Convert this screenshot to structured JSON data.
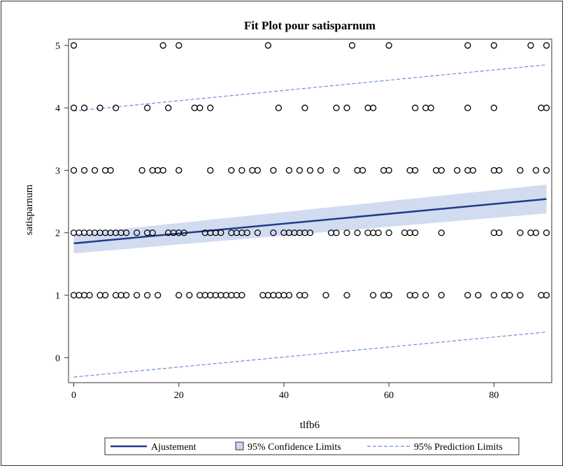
{
  "chart_data": {
    "type": "scatter",
    "title": "Fit Plot pour satisparnum",
    "xlabel": "tlfb6",
    "ylabel": "satisparnum",
    "xlim": [
      -1,
      91
    ],
    "ylim": [
      -0.4,
      5.1
    ],
    "x_ticks": [
      0,
      20,
      40,
      60,
      80
    ],
    "y_ticks": [
      0,
      1,
      2,
      3,
      4,
      5
    ],
    "grid": false,
    "legend_position": "bottom",
    "colors": {
      "fit": "#1f3c88",
      "band": "#c9d6ee",
      "prediction": "#6b8fd0",
      "marker": "#000000"
    },
    "series": [
      {
        "name": "satisparnum",
        "kind": "points",
        "points": [
          [
            0,
            5
          ],
          [
            17,
            5
          ],
          [
            20,
            5
          ],
          [
            37,
            5
          ],
          [
            53,
            5
          ],
          [
            60,
            5
          ],
          [
            75,
            5
          ],
          [
            80,
            5
          ],
          [
            87,
            5
          ],
          [
            90,
            5
          ],
          [
            0,
            4
          ],
          [
            2,
            4
          ],
          [
            5,
            4
          ],
          [
            8,
            4
          ],
          [
            14,
            4
          ],
          [
            18,
            4
          ],
          [
            23,
            4
          ],
          [
            24,
            4
          ],
          [
            26,
            4
          ],
          [
            39,
            4
          ],
          [
            44,
            4
          ],
          [
            50,
            4
          ],
          [
            52,
            4
          ],
          [
            56,
            4
          ],
          [
            57,
            4
          ],
          [
            65,
            4
          ],
          [
            67,
            4
          ],
          [
            68,
            4
          ],
          [
            75,
            4
          ],
          [
            80,
            4
          ],
          [
            89,
            4
          ],
          [
            90,
            4
          ],
          [
            0,
            3
          ],
          [
            2,
            3
          ],
          [
            4,
            3
          ],
          [
            6,
            3
          ],
          [
            7,
            3
          ],
          [
            13,
            3
          ],
          [
            15,
            3
          ],
          [
            16,
            3
          ],
          [
            17,
            3
          ],
          [
            20,
            3
          ],
          [
            26,
            3
          ],
          [
            30,
            3
          ],
          [
            32,
            3
          ],
          [
            34,
            3
          ],
          [
            35,
            3
          ],
          [
            38,
            3
          ],
          [
            41,
            3
          ],
          [
            43,
            3
          ],
          [
            45,
            3
          ],
          [
            47,
            3
          ],
          [
            50,
            3
          ],
          [
            54,
            3
          ],
          [
            55,
            3
          ],
          [
            59,
            3
          ],
          [
            60,
            3
          ],
          [
            64,
            3
          ],
          [
            65,
            3
          ],
          [
            69,
            3
          ],
          [
            70,
            3
          ],
          [
            73,
            3
          ],
          [
            75,
            3
          ],
          [
            76,
            3
          ],
          [
            80,
            3
          ],
          [
            81,
            3
          ],
          [
            85,
            3
          ],
          [
            88,
            3
          ],
          [
            90,
            3
          ],
          [
            0,
            2
          ],
          [
            1,
            2
          ],
          [
            2,
            2
          ],
          [
            3,
            2
          ],
          [
            4,
            2
          ],
          [
            5,
            2
          ],
          [
            6,
            2
          ],
          [
            7,
            2
          ],
          [
            8,
            2
          ],
          [
            9,
            2
          ],
          [
            10,
            2
          ],
          [
            12,
            2
          ],
          [
            14,
            2
          ],
          [
            15,
            2
          ],
          [
            18,
            2
          ],
          [
            19,
            2
          ],
          [
            20,
            2
          ],
          [
            21,
            2
          ],
          [
            25,
            2
          ],
          [
            26,
            2
          ],
          [
            27,
            2
          ],
          [
            28,
            2
          ],
          [
            30,
            2
          ],
          [
            31,
            2
          ],
          [
            32,
            2
          ],
          [
            33,
            2
          ],
          [
            35,
            2
          ],
          [
            38,
            2
          ],
          [
            40,
            2
          ],
          [
            41,
            2
          ],
          [
            42,
            2
          ],
          [
            43,
            2
          ],
          [
            44,
            2
          ],
          [
            45,
            2
          ],
          [
            49,
            2
          ],
          [
            50,
            2
          ],
          [
            52,
            2
          ],
          [
            54,
            2
          ],
          [
            56,
            2
          ],
          [
            57,
            2
          ],
          [
            58,
            2
          ],
          [
            60,
            2
          ],
          [
            63,
            2
          ],
          [
            64,
            2
          ],
          [
            65,
            2
          ],
          [
            70,
            2
          ],
          [
            80,
            2
          ],
          [
            81,
            2
          ],
          [
            85,
            2
          ],
          [
            87,
            2
          ],
          [
            88,
            2
          ],
          [
            90,
            2
          ],
          [
            0,
            1
          ],
          [
            1,
            1
          ],
          [
            2,
            1
          ],
          [
            3,
            1
          ],
          [
            5,
            1
          ],
          [
            6,
            1
          ],
          [
            8,
            1
          ],
          [
            9,
            1
          ],
          [
            10,
            1
          ],
          [
            12,
            1
          ],
          [
            14,
            1
          ],
          [
            16,
            1
          ],
          [
            20,
            1
          ],
          [
            22,
            1
          ],
          [
            24,
            1
          ],
          [
            25,
            1
          ],
          [
            26,
            1
          ],
          [
            27,
            1
          ],
          [
            28,
            1
          ],
          [
            29,
            1
          ],
          [
            30,
            1
          ],
          [
            31,
            1
          ],
          [
            32,
            1
          ],
          [
            36,
            1
          ],
          [
            37,
            1
          ],
          [
            38,
            1
          ],
          [
            39,
            1
          ],
          [
            40,
            1
          ],
          [
            41,
            1
          ],
          [
            43,
            1
          ],
          [
            44,
            1
          ],
          [
            48,
            1
          ],
          [
            52,
            1
          ],
          [
            57,
            1
          ],
          [
            59,
            1
          ],
          [
            60,
            1
          ],
          [
            64,
            1
          ],
          [
            65,
            1
          ],
          [
            67,
            1
          ],
          [
            70,
            1
          ],
          [
            75,
            1
          ],
          [
            77,
            1
          ],
          [
            80,
            1
          ],
          [
            82,
            1
          ],
          [
            83,
            1
          ],
          [
            85,
            1
          ],
          [
            89,
            1
          ],
          [
            90,
            1
          ]
        ]
      },
      {
        "name": "Ajustement",
        "kind": "fit-line",
        "x": [
          0,
          90
        ],
        "y": [
          1.83,
          2.54
        ]
      },
      {
        "name": "95% Confidence Limits",
        "kind": "band",
        "x": [
          0,
          90
        ],
        "lower": [
          1.67,
          2.31
        ],
        "upper": [
          1.98,
          2.77
        ]
      },
      {
        "name": "95% Prediction Limits",
        "kind": "dashed-pair",
        "x": [
          0,
          90
        ],
        "lower": [
          -0.31,
          0.41
        ],
        "upper": [
          3.95,
          4.69
        ]
      }
    ]
  },
  "legend": {
    "items": [
      "Ajustement",
      "95% Confidence Limits",
      "95% Prediction Limits"
    ]
  }
}
